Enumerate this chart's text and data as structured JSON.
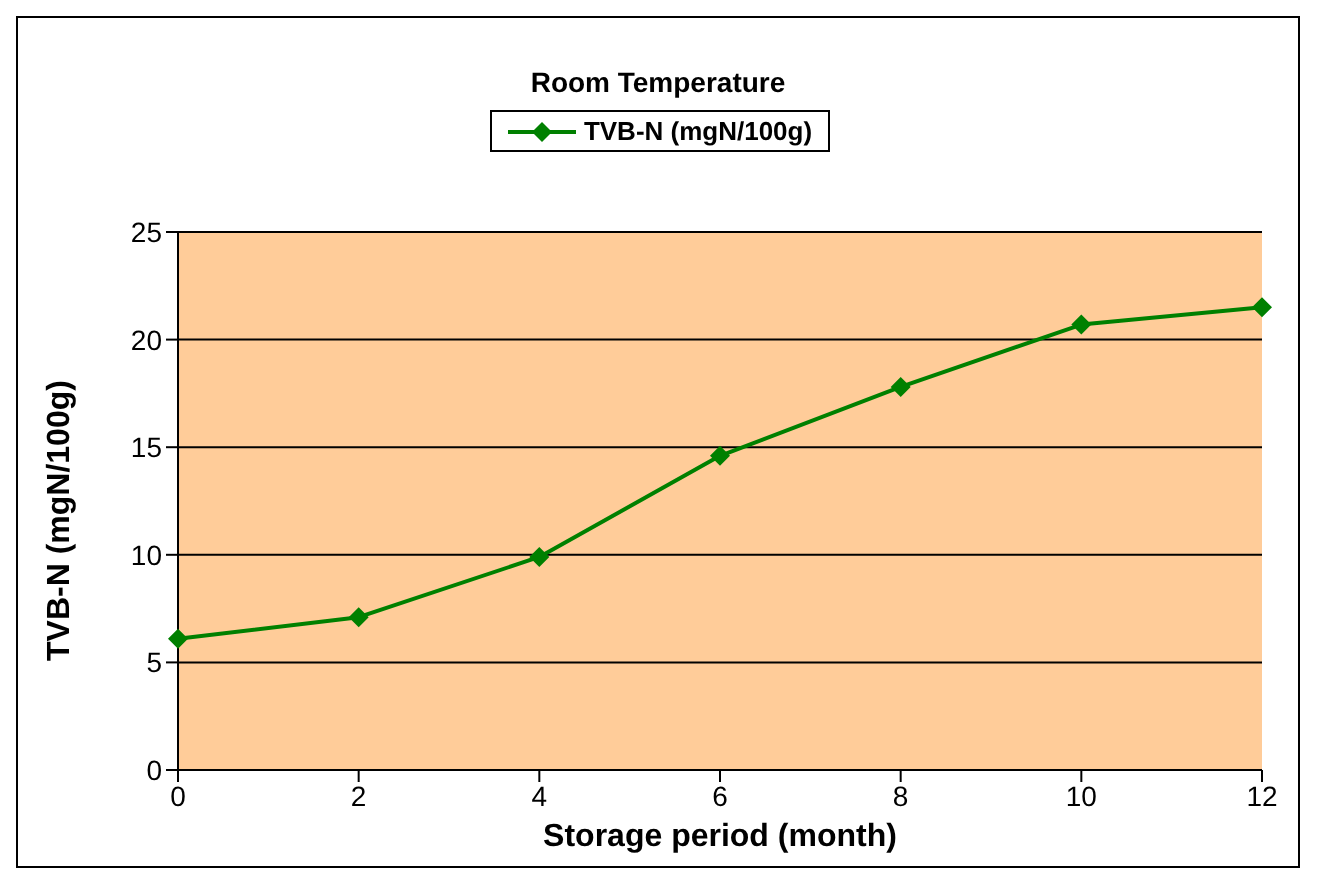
{
  "chart_data": {
    "type": "line",
    "title": "Room Temperature",
    "xlabel": "Storage period (month)",
    "ylabel": "TVB-N (mgN/100g)",
    "categories": [
      "0",
      "2",
      "4",
      "6",
      "8",
      "10",
      "12"
    ],
    "series": [
      {
        "name": "TVB-N (mgN/100g)",
        "color": "#008000",
        "values": [
          6.1,
          7.1,
          9.9,
          14.6,
          17.8,
          20.7,
          21.5
        ]
      }
    ],
    "ylim": [
      0,
      25
    ],
    "yticks": [
      0,
      5,
      10,
      15,
      20,
      25
    ],
    "grid": "y",
    "legend": "top",
    "marker": "diamond",
    "line_style": "solid"
  }
}
